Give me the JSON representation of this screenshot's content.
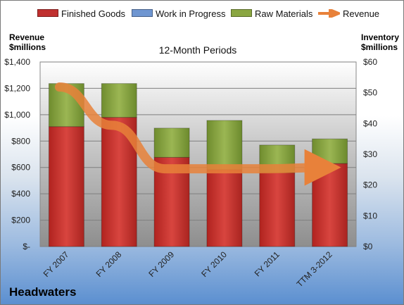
{
  "chart_data": {
    "type": "bar",
    "title": "12-Month Periods",
    "footer_title": "Headwaters",
    "y_left_label_line1": "Revenue",
    "y_left_label_line2": "$millions",
    "y_right_label_line1": "Inventory",
    "y_right_label_line2": "$millions",
    "categories": [
      "FY 2007",
      "FY 2008",
      "FY 2009",
      "FY 2010",
      "FY 2011",
      "TTM 3-2012"
    ],
    "series": [
      {
        "name": "Finished Goods",
        "axis": "right",
        "kind": "stacked-bar",
        "color": "#c0302f",
        "values": [
          39,
          42,
          29,
          25,
          24,
          27
        ]
      },
      {
        "name": "Work in Progress",
        "axis": "right",
        "kind": "stacked-bar",
        "color": "#6f96d1",
        "values": [
          0,
          0,
          0,
          0,
          0,
          0
        ]
      },
      {
        "name": "Raw Materials",
        "axis": "right",
        "kind": "stacked-bar",
        "color": "#8aa641",
        "values": [
          14,
          11,
          9.5,
          16,
          9,
          8
        ]
      },
      {
        "name": "Revenue",
        "axis": "left",
        "kind": "line",
        "color": "#e8813a",
        "values": [
          1210,
          920,
          590,
          590,
          590,
          600
        ]
      }
    ],
    "y_left": {
      "min": 0,
      "max": 1400,
      "ticks": [
        "$-",
        "$200",
        "$400",
        "$600",
        "$800",
        "$1,000",
        "$1,200",
        "$1,400"
      ]
    },
    "y_right": {
      "min": 0,
      "max": 60,
      "ticks": [
        "$0",
        "$10",
        "$20",
        "$30",
        "$40",
        "$50",
        "$60"
      ]
    },
    "grid": true,
    "legend_position": "top"
  }
}
